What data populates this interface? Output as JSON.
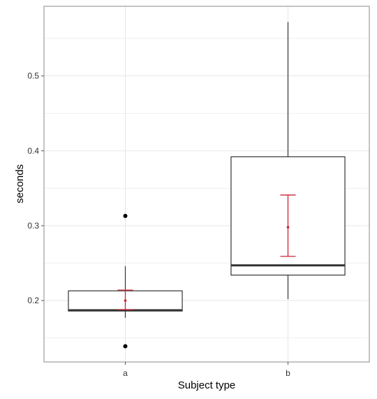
{
  "chart_data": {
    "type": "boxplot",
    "xlabel": "Subject type",
    "ylabel": "seconds",
    "categories": [
      "a",
      "b"
    ],
    "ylim": [
      0.118,
      0.593
    ],
    "y_ticks": [
      0.2,
      0.3,
      0.4,
      0.5
    ],
    "y_tick_labels": [
      "0.2",
      "0.3",
      "0.4",
      "0.5"
    ],
    "grid": true,
    "colors": {
      "box": "#333333",
      "mean_errorbar": "#cc2233",
      "grid": "#e6e6e6",
      "panel_border": "#8a8a8a"
    },
    "boxes": [
      {
        "category": "a",
        "q1": 0.186,
        "median": 0.187,
        "q3": 0.213,
        "whisker_low": 0.177,
        "whisker_high": 0.246,
        "outliers": [
          0.313,
          0.139
        ],
        "mean": 0.2,
        "ci_low": 0.188,
        "ci_high": 0.214
      },
      {
        "category": "b",
        "q1": 0.234,
        "median": 0.247,
        "q3": 0.392,
        "whisker_low": 0.202,
        "whisker_high": 0.572,
        "outliers": [],
        "mean": 0.298,
        "ci_low": 0.259,
        "ci_high": 0.341
      }
    ]
  }
}
